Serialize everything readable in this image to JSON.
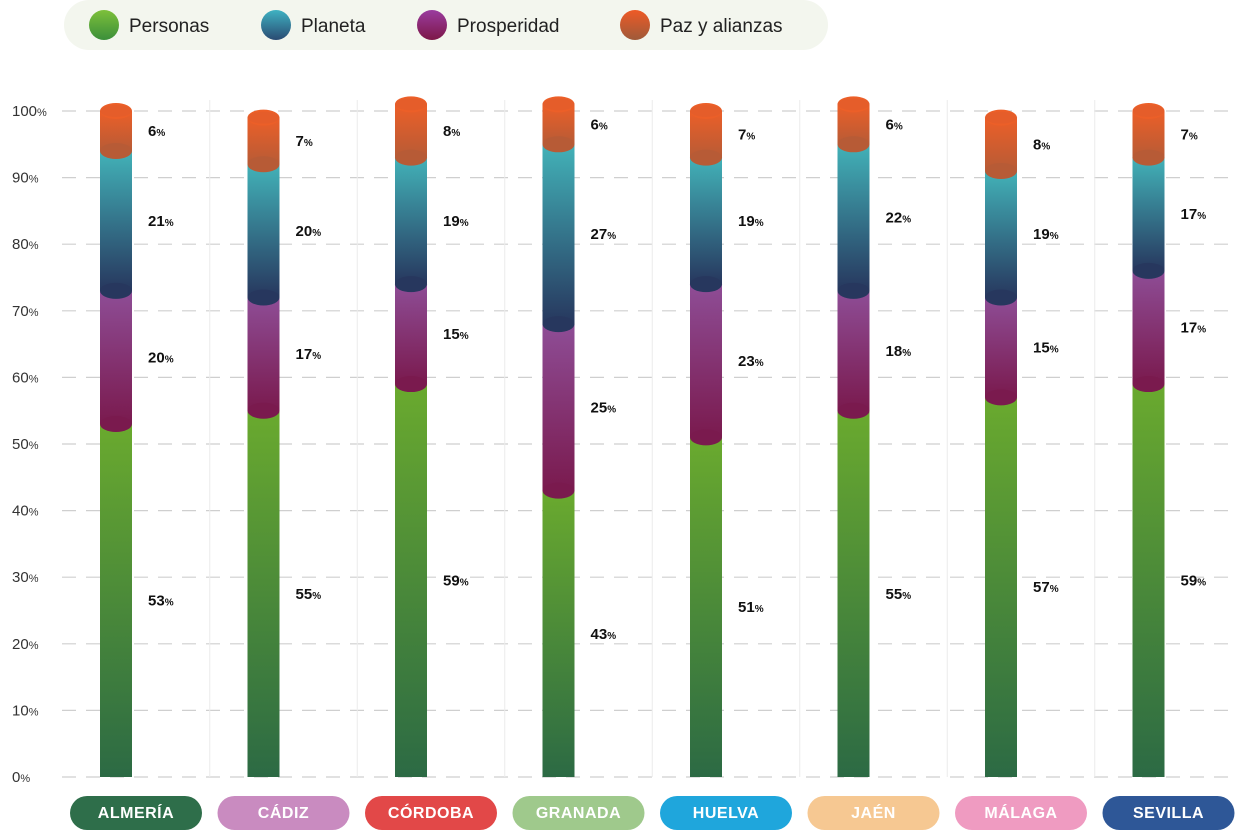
{
  "chart_data": {
    "type": "bar",
    "stacked": true,
    "categories": [
      "ALMERÍA",
      "CÁDIZ",
      "CÓRDOBA",
      "GRANADA",
      "HUELVA",
      "JAÉN",
      "MÁLAGA",
      "SEVILLA"
    ],
    "category_colors": [
      "#2e6e4a",
      "#c98bc0",
      "#e24848",
      "#9fc98c",
      "#1fa6dc",
      "#f6c892",
      "#ef9bc1",
      "#2e5797"
    ],
    "series": [
      {
        "name": "Personas",
        "color_top": "#6aaa2e",
        "color_bottom": "#2c6a44",
        "values": [
          53,
          55,
          59,
          43,
          51,
          55,
          57,
          59
        ]
      },
      {
        "name": "Prosperidad",
        "color_top": "#8e4d96",
        "color_bottom": "#7a1a4e",
        "values": [
          20,
          17,
          15,
          25,
          23,
          18,
          15,
          17
        ]
      },
      {
        "name": "Planeta",
        "color_top": "#42b2b8",
        "color_bottom": "#27375e",
        "values": [
          21,
          20,
          19,
          27,
          19,
          22,
          19,
          17
        ]
      },
      {
        "name": "Paz y alianzas",
        "color_top": "#ec5f28",
        "color_bottom": "#b75b36",
        "values": [
          6,
          7,
          8,
          6,
          7,
          6,
          8,
          7
        ]
      }
    ],
    "legend": [
      {
        "name": "Personas",
        "icon": "green-circle"
      },
      {
        "name": "Planeta",
        "icon": "teal-circle"
      },
      {
        "name": "Prosperidad",
        "icon": "purple-circle"
      },
      {
        "name": "Paz y alianzas",
        "icon": "orange-circle"
      }
    ],
    "legend_position": "top-left",
    "y_ticks": [
      0,
      10,
      20,
      30,
      40,
      50,
      60,
      70,
      80,
      90,
      100
    ],
    "y_tick_suffix": "%",
    "value_suffix": "%",
    "ylim": [
      0,
      100
    ],
    "grid": true,
    "title": "",
    "xlabel": "",
    "ylabel": ""
  }
}
